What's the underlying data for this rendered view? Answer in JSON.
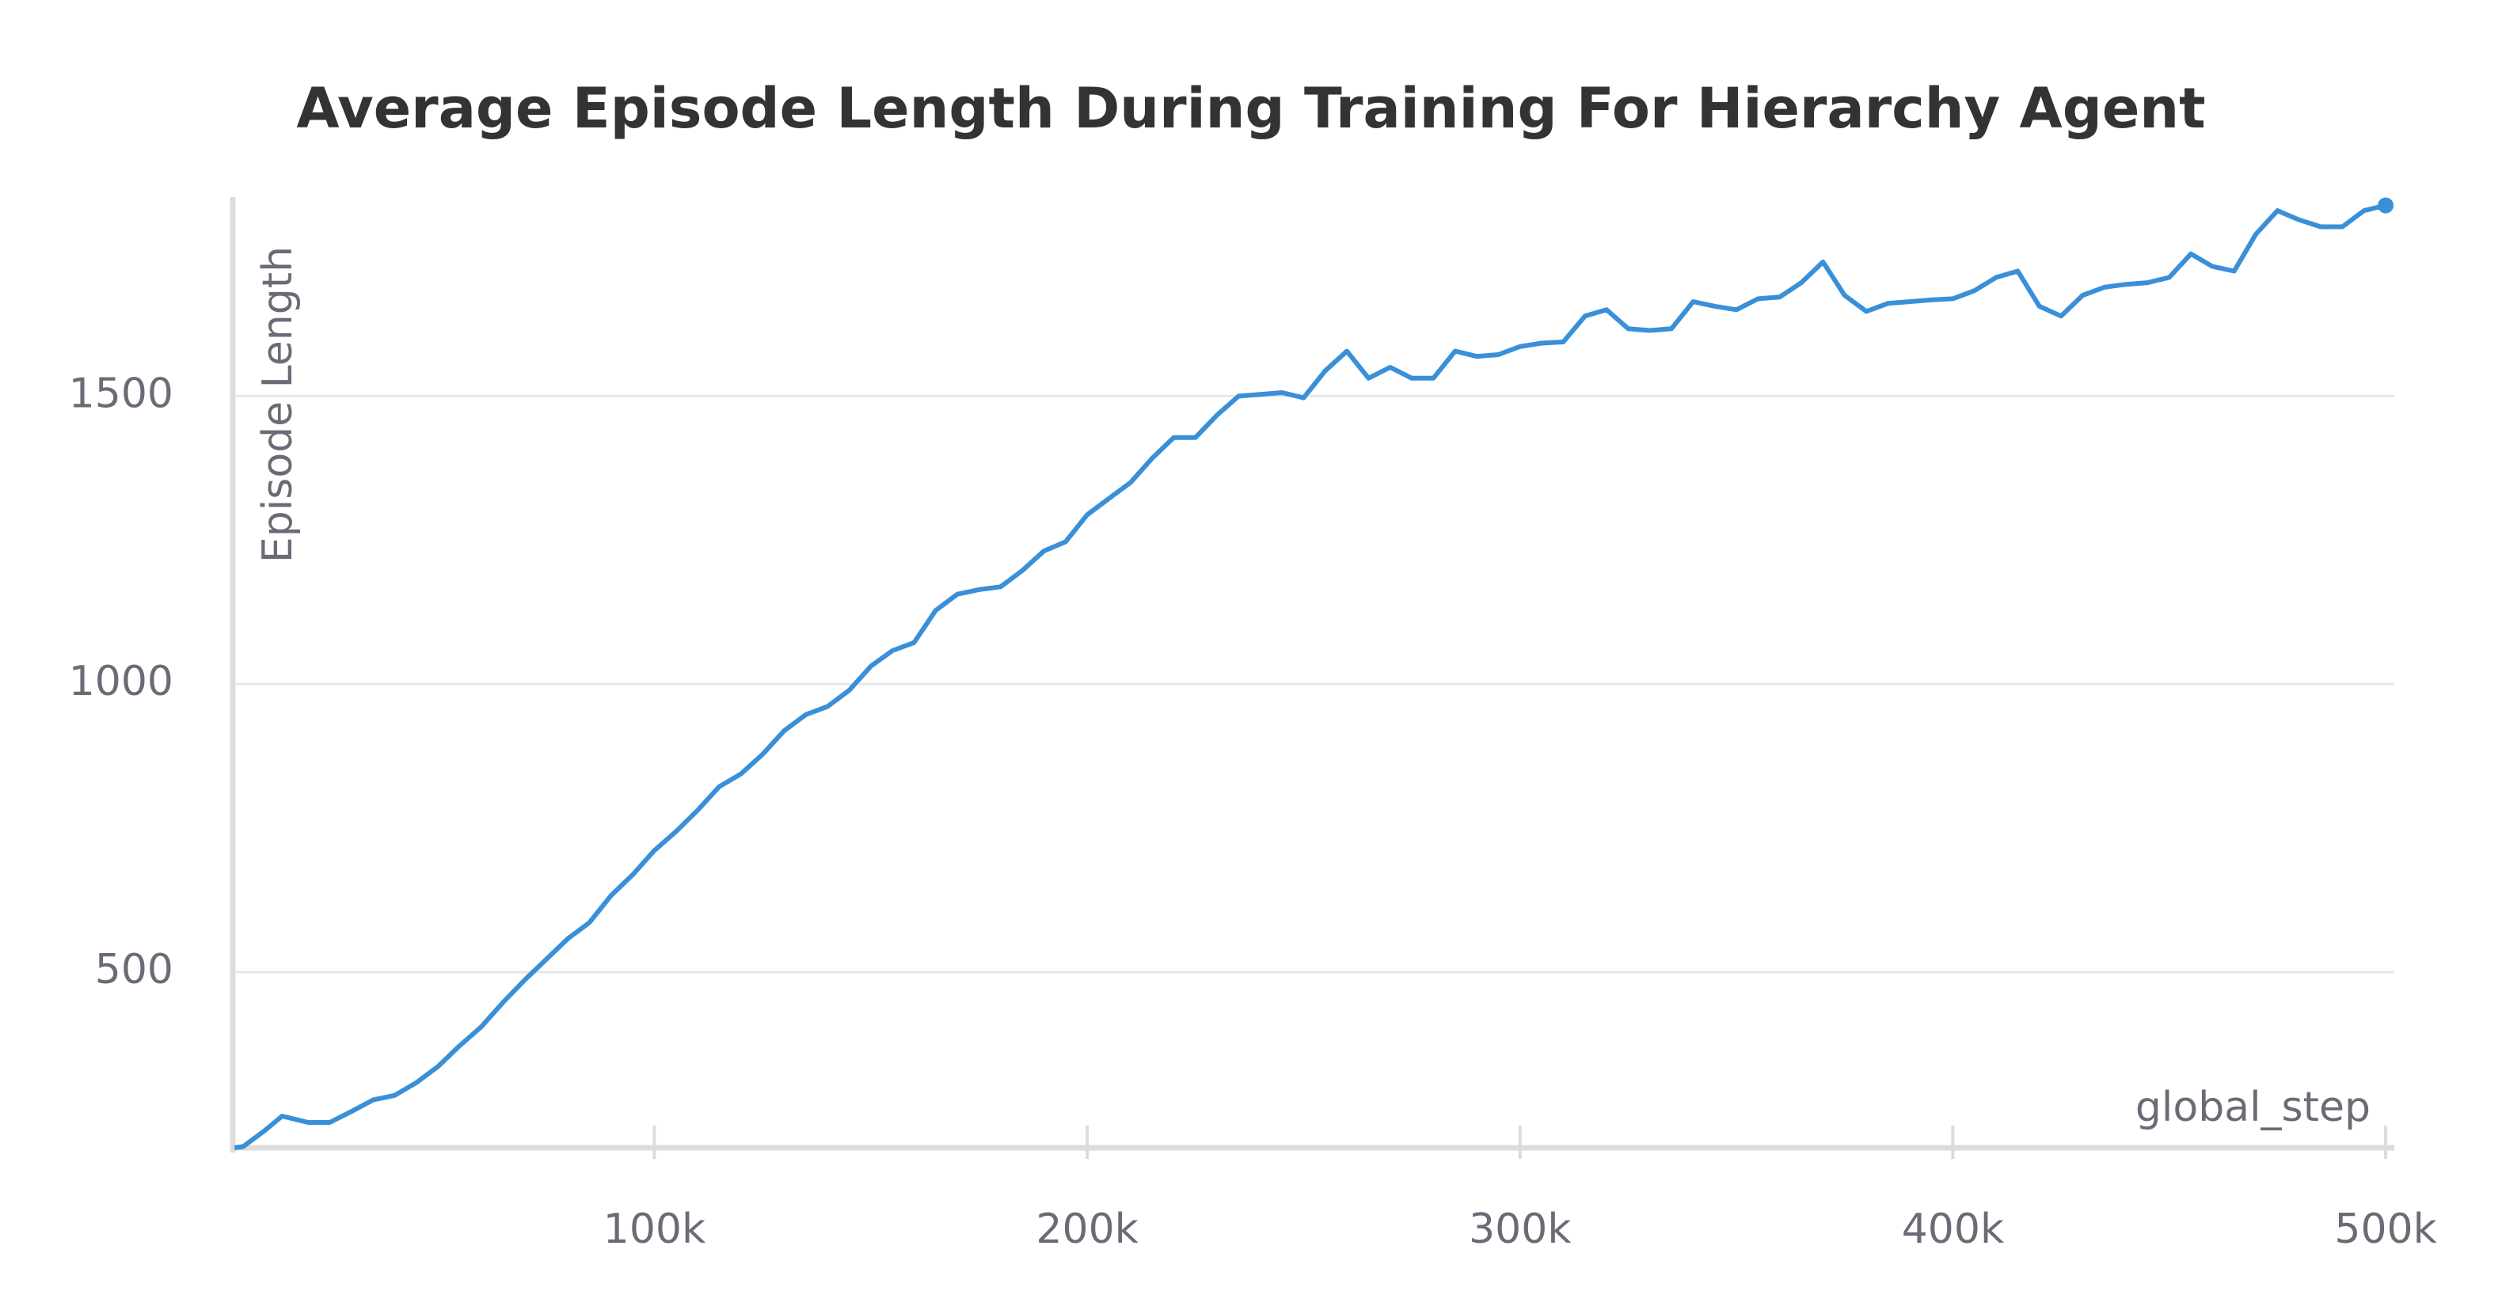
{
  "chart_data": {
    "type": "line",
    "title": "Average Episode Length During Training For Hierarchy Agent",
    "x_label": "global_step",
    "y_label": "Episode Length",
    "color": "#3a8fd9",
    "x": [
      3000,
      5000,
      10000,
      14000,
      20000,
      25000,
      30000,
      35000,
      40000,
      45000,
      50000,
      55000,
      60000,
      65000,
      70000,
      75000,
      80000,
      85000,
      90000,
      95000,
      100000,
      105000,
      110000,
      115000,
      120000,
      125000,
      130000,
      135000,
      140000,
      145000,
      150000,
      155000,
      160000,
      165000,
      170000,
      175000,
      180000,
      185000,
      190000,
      195000,
      200000,
      205000,
      210000,
      215000,
      220000,
      225000,
      230000,
      235000,
      240000,
      245000,
      250000,
      255000,
      260000,
      265000,
      270000,
      275000,
      280000,
      285000,
      290000,
      295000,
      300000,
      305000,
      310000,
      315000,
      320000,
      325000,
      330000,
      335000,
      340000,
      345000,
      350000,
      355000,
      360000,
      365000,
      370000,
      375000,
      380000,
      385000,
      390000,
      395000,
      400000,
      405000,
      410000,
      415000,
      420000,
      425000,
      430000,
      435000,
      440000,
      445000,
      450000,
      455000,
      460000,
      465000,
      470000,
      475000,
      480000,
      485000,
      490000,
      495000,
      500000
    ],
    "values": [
      195,
      197,
      225,
      250,
      239,
      239,
      258,
      278,
      286,
      308,
      336,
      372,
      405,
      447,
      486,
      522,
      558,
      586,
      633,
      669,
      711,
      744,
      781,
      822,
      844,
      878,
      919,
      947,
      961,
      989,
      1031,
      1058,
      1072,
      1128,
      1156,
      1164,
      1169,
      1197,
      1231,
      1247,
      1294,
      1322,
      1350,
      1392,
      1428,
      1428,
      1467,
      1500,
      1503,
      1506,
      1497,
      1544,
      1578,
      1531,
      1550,
      1531,
      1531,
      1578,
      1569,
      1572,
      1586,
      1592,
      1594,
      1639,
      1650,
      1617,
      1614,
      1617,
      1664,
      1656,
      1650,
      1669,
      1672,
      1697,
      1733,
      1675,
      1647,
      1661,
      1664,
      1667,
      1669,
      1683,
      1706,
      1717,
      1656,
      1639,
      1675,
      1689,
      1694,
      1697,
      1706,
      1747,
      1725,
      1717,
      1781,
      1822,
      1806,
      1794,
      1794,
      1822,
      1831
    ],
    "xlim": [
      2600,
      502000
    ],
    "ylim": [
      195,
      1840
    ],
    "xticks": [
      {
        "value": 100000,
        "label": "100k"
      },
      {
        "value": 200000,
        "label": "200k"
      },
      {
        "value": 300000,
        "label": "300k"
      },
      {
        "value": 400000,
        "label": "400k"
      },
      {
        "value": 500000,
        "label": "500k"
      }
    ],
    "yticks": [
      500,
      1000,
      1500
    ],
    "grid": true
  }
}
